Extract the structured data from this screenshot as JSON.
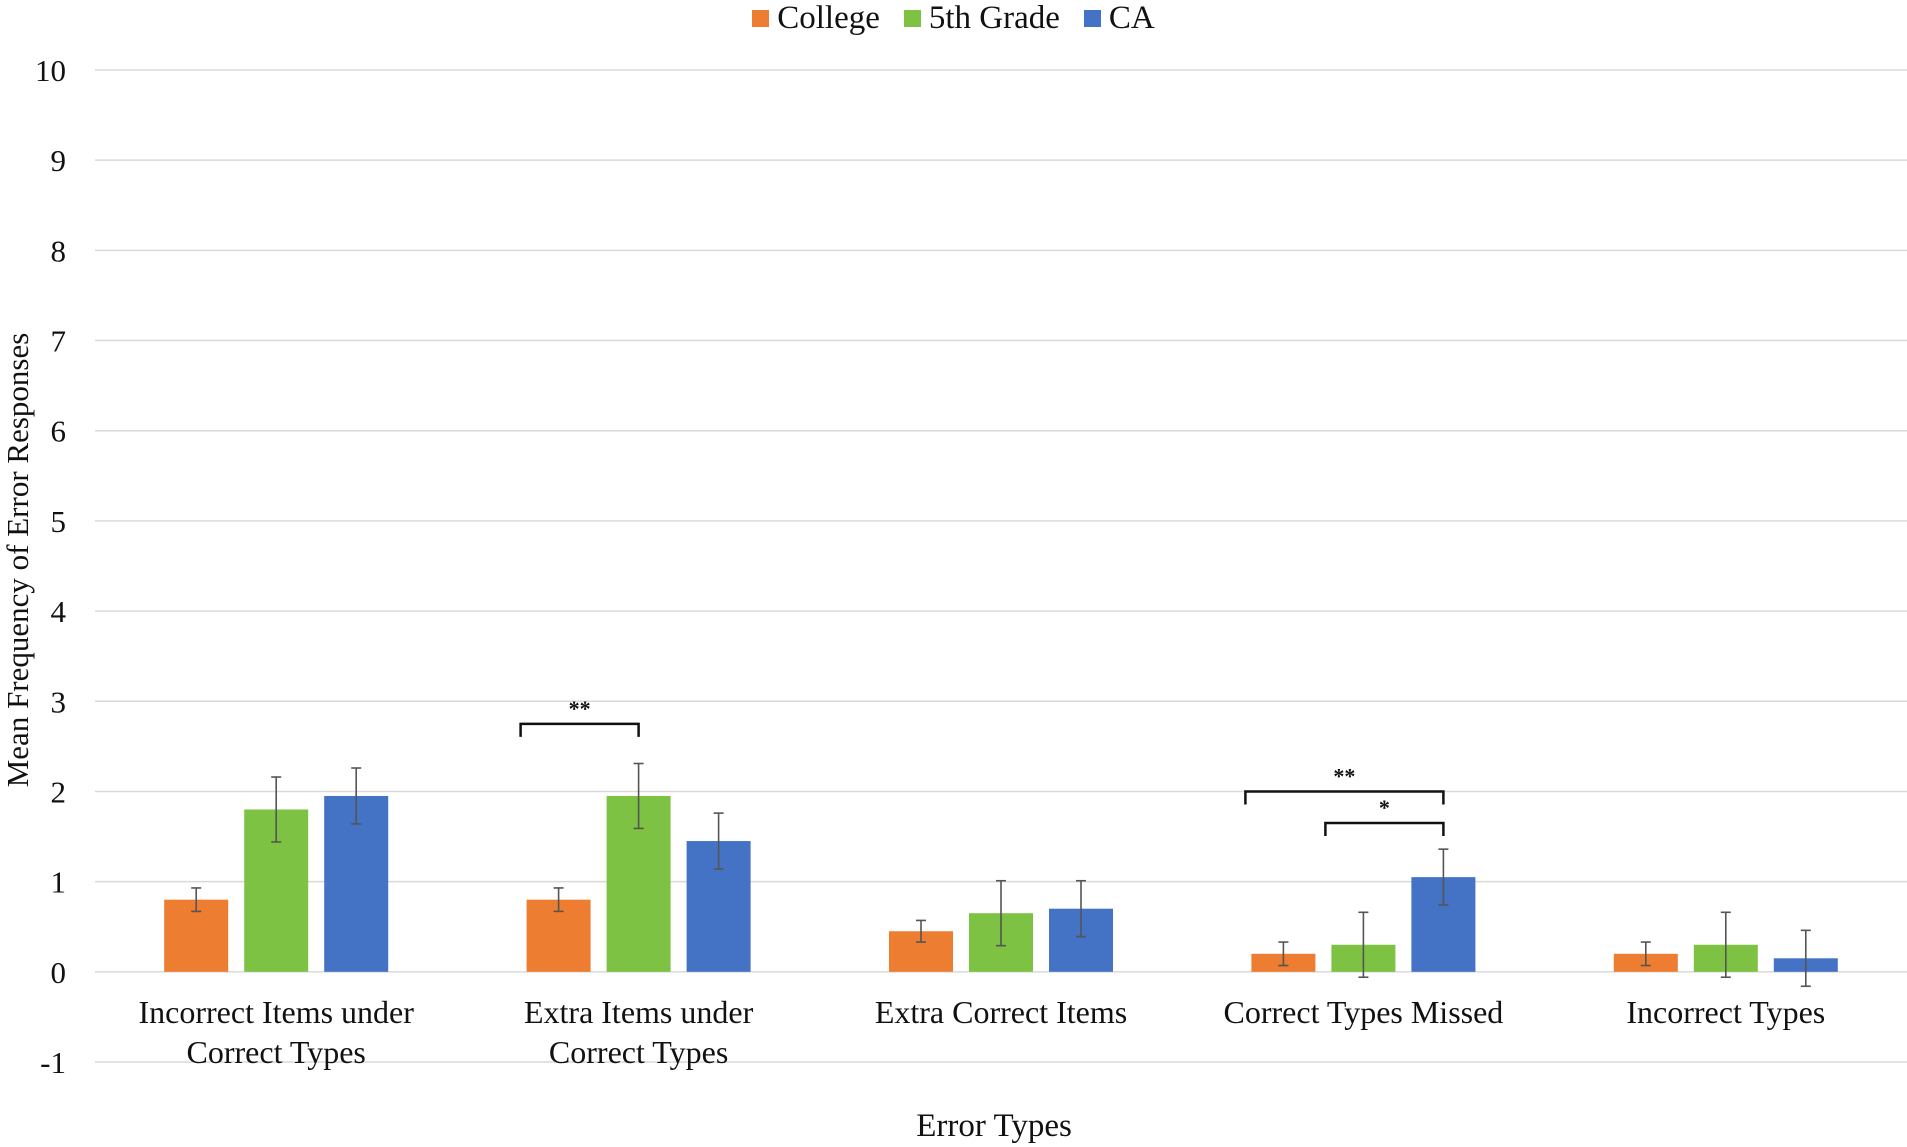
{
  "chart_data": {
    "type": "bar",
    "xlabel": "Error Types",
    "ylabel": "Mean Frequency of Error Responses",
    "ylim": [
      -1,
      10
    ],
    "yticks": [
      -1,
      0,
      1,
      2,
      3,
      4,
      5,
      6,
      7,
      8,
      9,
      10
    ],
    "grid": true,
    "legend_position": "top-center",
    "categories": [
      [
        "Incorrect Items under",
        "Correct Types"
      ],
      [
        "Extra Items under",
        "Correct Types"
      ],
      [
        "Extra Correct Items"
      ],
      [
        "Correct Types Missed"
      ],
      [
        "Incorrect Types"
      ]
    ],
    "series": [
      {
        "name": "College",
        "color": "#ED7D31",
        "values": [
          0.8,
          0.8,
          0.45,
          0.2,
          0.2
        ],
        "errors": [
          0.13,
          0.13,
          0.12,
          0.13,
          0.13
        ]
      },
      {
        "name": "5th Grade",
        "color": "#7DC242",
        "values": [
          1.8,
          1.95,
          0.65,
          0.3,
          0.3
        ],
        "errors": [
          0.36,
          0.36,
          0.36,
          0.36,
          0.36
        ]
      },
      {
        "name": "CA",
        "color": "#4472C4",
        "values": [
          1.95,
          1.45,
          0.7,
          1.05,
          0.15
        ],
        "errors": [
          0.31,
          0.31,
          0.31,
          0.31,
          0.31
        ]
      }
    ],
    "significance": [
      {
        "category": 1,
        "from_series": 0,
        "to_series": 1,
        "level": 2.75,
        "label": "**"
      },
      {
        "category": 3,
        "from_series": 0,
        "to_series": 2,
        "level": 2.0,
        "label": "**"
      },
      {
        "category": 3,
        "from_series": 1,
        "to_series": 2,
        "level": 1.65,
        "label": "*"
      }
    ]
  }
}
